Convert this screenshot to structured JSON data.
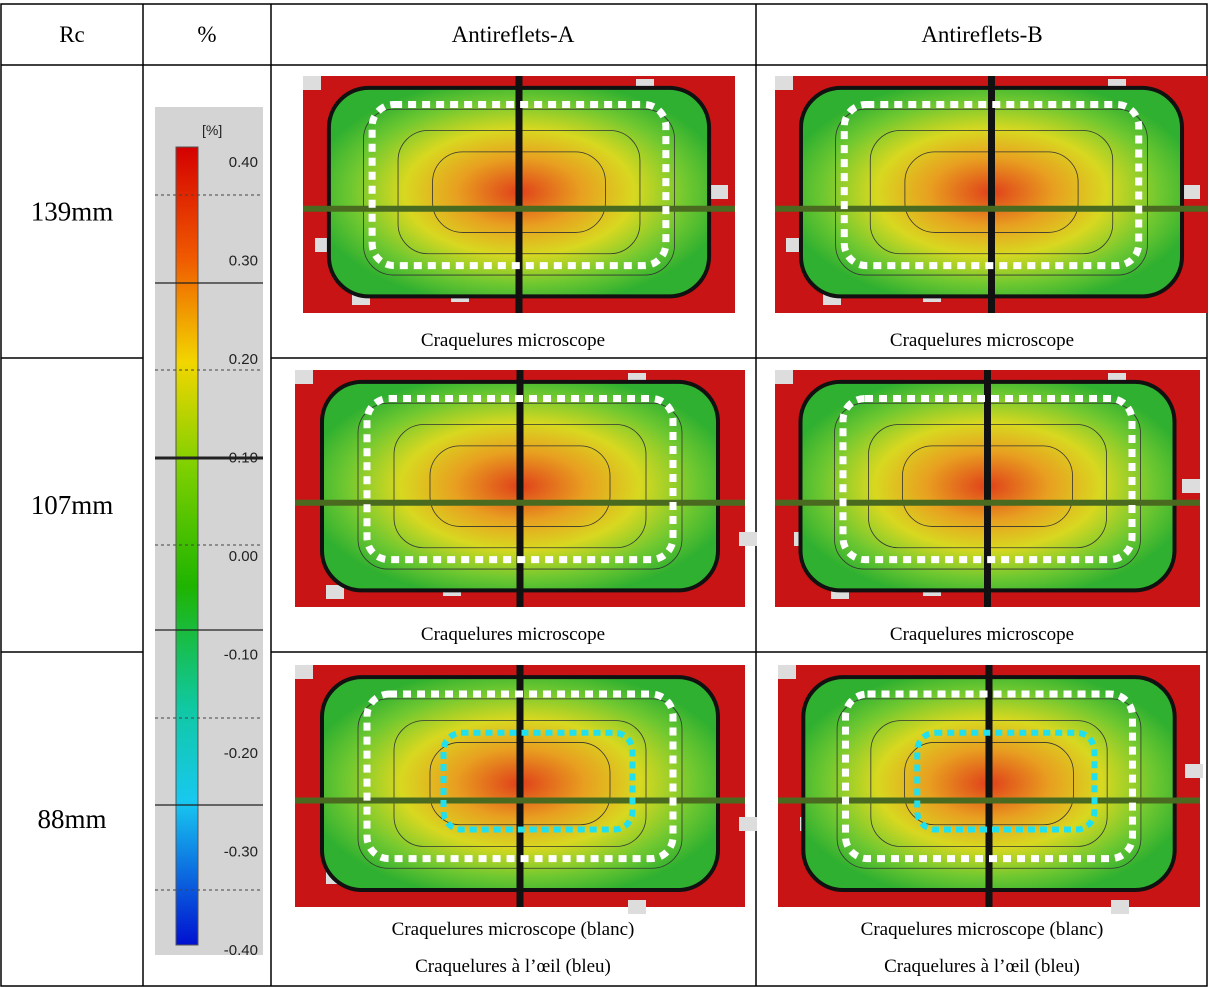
{
  "table": {
    "header": [
      "Rc",
      "%",
      "Antireflets-A",
      "Antireflets-B"
    ],
    "rows": [
      {
        "rc": "139mm",
        "captions": [
          [
            "Craquelures microscope"
          ],
          [
            "Craquelures microscope"
          ]
        ]
      },
      {
        "rc": "107mm",
        "captions": [
          [
            "Craquelures microscope"
          ],
          [
            "Craquelures microscope"
          ]
        ]
      },
      {
        "rc": "88mm",
        "captions": [
          [
            "Craquelures microscope (blanc)",
            "Craquelures à l’œil (bleu)"
          ],
          [
            "Craquelures microscope (blanc)",
            "Craquelures à l’œil (bleu)"
          ]
        ]
      }
    ]
  },
  "colorbar": {
    "unit": "[%]",
    "labels": [
      "0.40",
      "0.30",
      "0.20",
      "0.10",
      "0.00",
      "-0.10",
      "-0.20",
      "-0.30",
      "-0.40"
    ]
  }
}
